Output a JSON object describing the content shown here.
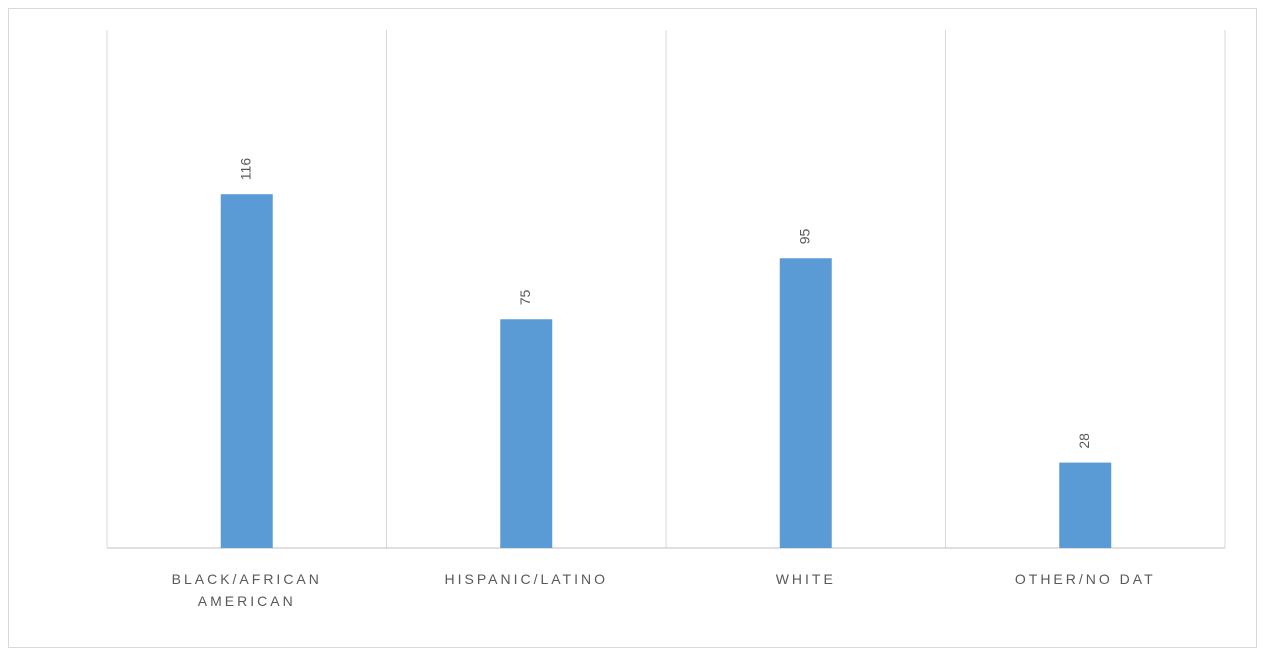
{
  "chart_data": {
    "type": "bar",
    "categories": [
      "BLACK/AFRICAN AMERICAN",
      "HISPANIC/LATINO",
      "WHITE",
      "OTHER/NO DAT"
    ],
    "values": [
      116,
      75,
      95,
      28
    ],
    "color": "#5b9bd5",
    "ylim": [
      0,
      160
    ],
    "grid": true
  }
}
